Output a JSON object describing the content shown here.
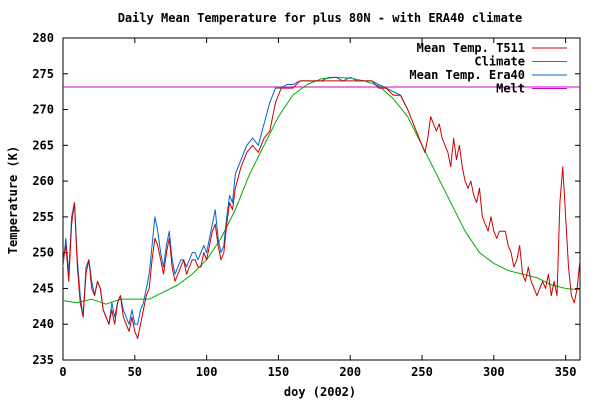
{
  "chart_data": {
    "type": "line",
    "title": "Daily Mean Temperature for plus 80N - with ERA40 climate",
    "xlabel": "doy (2002)",
    "ylabel": "Temperature (K)",
    "xlim": [
      0,
      360
    ],
    "ylim": [
      235,
      280
    ],
    "x_ticks": [
      0,
      50,
      100,
      150,
      200,
      250,
      300,
      350
    ],
    "y_ticks": [
      235,
      240,
      245,
      250,
      255,
      260,
      265,
      270,
      275,
      280
    ],
    "legend_position": "top-right",
    "series": [
      {
        "name": "Mean Temp. T511",
        "color": "#cc0000",
        "x": [
          0,
          2,
          4,
          6,
          8,
          10,
          12,
          14,
          16,
          18,
          20,
          22,
          24,
          26,
          28,
          30,
          32,
          34,
          36,
          38,
          40,
          42,
          44,
          46,
          48,
          50,
          52,
          54,
          56,
          58,
          60,
          62,
          64,
          66,
          68,
          70,
          72,
          74,
          76,
          78,
          80,
          82,
          84,
          86,
          88,
          90,
          92,
          94,
          96,
          98,
          100,
          102,
          104,
          106,
          108,
          110,
          112,
          114,
          116,
          118,
          120,
          124,
          128,
          132,
          136,
          140,
          144,
          148,
          150,
          152,
          156,
          160,
          165,
          170,
          175,
          180,
          185,
          190,
          195,
          200,
          205,
          210,
          215,
          220,
          225,
          230,
          235,
          240,
          244,
          248,
          250,
          252,
          254,
          256,
          258,
          260,
          262,
          264,
          266,
          268,
          270,
          272,
          274,
          276,
          278,
          280,
          282,
          284,
          286,
          288,
          290,
          292,
          294,
          296,
          298,
          300,
          302,
          304,
          306,
          308,
          310,
          312,
          314,
          316,
          318,
          320,
          322,
          324,
          326,
          328,
          330,
          332,
          334,
          336,
          338,
          340,
          342,
          344,
          346,
          348,
          350,
          352,
          354,
          356,
          358,
          360
        ],
        "values": [
          249,
          251,
          246,
          254,
          257,
          248,
          243,
          241,
          247,
          249,
          245,
          244,
          246,
          245,
          242,
          241,
          240,
          242,
          240,
          243,
          244,
          241,
          240,
          239,
          241,
          239,
          238,
          240,
          242,
          244,
          245,
          249,
          252,
          251,
          249,
          247,
          250,
          252,
          248,
          246,
          247,
          248,
          249,
          247,
          248,
          249,
          249,
          248,
          248,
          250,
          249,
          251,
          253,
          254,
          251,
          249,
          250,
          254,
          257,
          256,
          259,
          262,
          264,
          265,
          264,
          266,
          267,
          271,
          272,
          273,
          273,
          273,
          274,
          274,
          274,
          274,
          274,
          274,
          274,
          274,
          274,
          274,
          274,
          273,
          273,
          272,
          272,
          270,
          268,
          266,
          265,
          264,
          266,
          269,
          268,
          267,
          268,
          266,
          265,
          264,
          262,
          266,
          263,
          265,
          262,
          260,
          259,
          260,
          258,
          257,
          259,
          255,
          254,
          253,
          255,
          253,
          252,
          253,
          253,
          253,
          251,
          250,
          248,
          249,
          251,
          247,
          246,
          248,
          246,
          245,
          244,
          245,
          246,
          245,
          247,
          244,
          246,
          244,
          257,
          262,
          255,
          248,
          244,
          243,
          245,
          249
        ]
      },
      {
        "name": "Climate",
        "color": "#00aa00",
        "x": [
          0,
          10,
          20,
          30,
          40,
          50,
          60,
          70,
          80,
          90,
          100,
          110,
          120,
          130,
          140,
          150,
          160,
          170,
          180,
          190,
          200,
          210,
          220,
          230,
          240,
          250,
          260,
          270,
          280,
          290,
          300,
          310,
          320,
          330,
          340,
          350,
          360
        ],
        "values": [
          243.3,
          243,
          243.5,
          242.8,
          243.5,
          243.5,
          243.5,
          244.5,
          245.5,
          247,
          249,
          252,
          256,
          261,
          265,
          269,
          272,
          273.5,
          274.3,
          274.5,
          274.4,
          274,
          273.3,
          271.5,
          269,
          265,
          261,
          257,
          253,
          250,
          248.5,
          247.5,
          247,
          246.5,
          245.5,
          245,
          244.8
        ]
      },
      {
        "name": "Mean Temp. Era40",
        "color": "#0066cc",
        "x": [
          0,
          2,
          4,
          6,
          8,
          10,
          12,
          14,
          16,
          18,
          20,
          22,
          24,
          26,
          28,
          30,
          32,
          34,
          36,
          38,
          40,
          42,
          44,
          46,
          48,
          50,
          52,
          54,
          56,
          58,
          60,
          62,
          64,
          66,
          68,
          70,
          72,
          74,
          76,
          78,
          80,
          82,
          84,
          86,
          88,
          90,
          92,
          94,
          96,
          98,
          100,
          102,
          104,
          106,
          108,
          110,
          112,
          114,
          116,
          118,
          120,
          124,
          128,
          132,
          136,
          140,
          144,
          148,
          150,
          152,
          156,
          160,
          165,
          170,
          175,
          180,
          185,
          190,
          195,
          200,
          205,
          210,
          215,
          220,
          225,
          230,
          235,
          240
        ],
        "values": [
          248,
          252,
          247,
          255,
          257,
          249,
          244,
          241,
          248,
          249,
          246,
          244,
          246,
          245,
          242,
          241,
          240,
          243,
          241,
          243,
          244,
          242,
          241,
          240,
          242,
          240,
          240,
          242,
          243,
          245,
          247,
          251,
          255,
          253,
          250,
          248,
          251,
          253,
          249,
          247,
          248,
          249,
          249,
          248,
          249,
          250,
          250,
          249,
          250,
          251,
          250,
          252,
          254,
          256,
          252,
          250,
          251,
          255,
          258,
          257,
          261,
          263,
          265,
          266,
          265,
          268,
          271,
          273,
          273,
          273,
          273.5,
          273.5,
          274,
          274,
          274,
          274,
          274.5,
          274.5,
          274,
          274.5,
          274,
          274,
          274,
          273.5,
          273,
          272.5,
          272,
          270
        ]
      },
      {
        "name": "Melt",
        "color": "#cc00cc",
        "x": [
          0,
          360
        ],
        "values": [
          273.15,
          273.15
        ]
      }
    ]
  }
}
